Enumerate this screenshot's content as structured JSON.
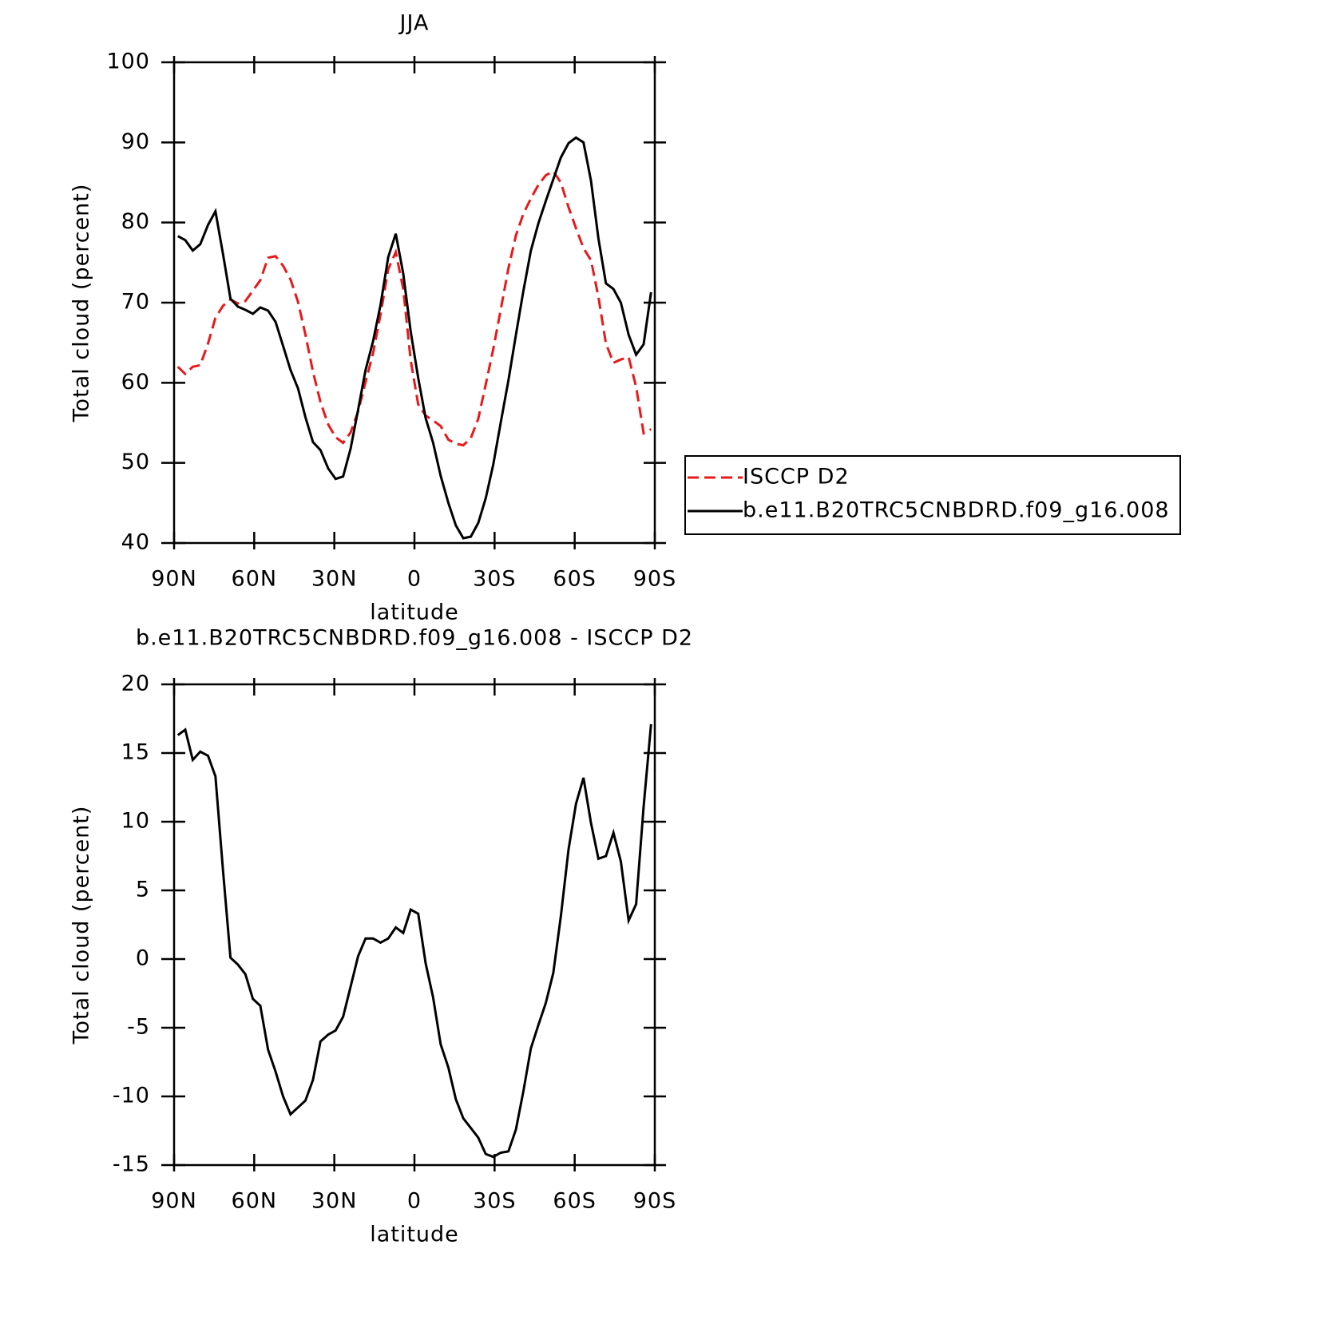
{
  "chart_data": [
    {
      "type": "line",
      "title": "JJA",
      "xlabel": "latitude",
      "ylabel": "Total cloud (percent)",
      "x": [
        88.6,
        85.8,
        83.0,
        80.2,
        77.3,
        74.5,
        71.7,
        68.9,
        66.1,
        63.3,
        60.5,
        57.7,
        54.8,
        52.0,
        49.2,
        46.4,
        43.6,
        40.8,
        38.0,
        35.2,
        32.3,
        29.5,
        26.7,
        23.9,
        21.1,
        18.3,
        15.5,
        12.7,
        9.8,
        7.0,
        4.2,
        1.4,
        -1.4,
        -4.2,
        -7.0,
        -9.8,
        -12.7,
        -15.5,
        -18.3,
        -21.1,
        -23.9,
        -26.7,
        -29.5,
        -32.3,
        -35.2,
        -38.0,
        -40.8,
        -43.6,
        -46.4,
        -49.2,
        -52.0,
        -54.8,
        -57.7,
        -60.5,
        -63.3,
        -66.1,
        -68.9,
        -71.7,
        -74.5,
        -77.3,
        -80.2,
        -83.0,
        -85.8,
        -88.6
      ],
      "series": [
        {
          "name": "ISCCP D2",
          "color": "#e8191b",
          "dashed": true,
          "values": [
            62.0,
            61.1,
            62.0,
            62.2,
            64.9,
            68.1,
            69.6,
            70.4,
            69.9,
            70.2,
            71.5,
            72.8,
            75.6,
            75.8,
            74.6,
            72.9,
            70.1,
            66.0,
            61.4,
            57.6,
            54.8,
            53.2,
            52.5,
            53.8,
            56.4,
            60.1,
            63.7,
            68.5,
            74.2,
            76.3,
            71.7,
            62.8,
            57.3,
            55.9,
            55.3,
            54.6,
            52.9,
            52.4,
            52.2,
            53.1,
            55.5,
            59.8,
            64.2,
            69.1,
            74.3,
            78.4,
            81.1,
            83.0,
            84.7,
            85.9,
            86.4,
            85.0,
            81.9,
            79.3,
            76.8,
            75.3,
            70.7,
            64.9,
            62.5,
            62.9,
            63.2,
            59.5,
            53.7,
            54.2
          ]
        },
        {
          "name": "b.e11.B20TRC5CNBDRD.f09_g16.008",
          "color": "#000000",
          "dashed": false,
          "values": [
            78.3,
            77.8,
            76.5,
            77.3,
            79.7,
            81.4,
            76.1,
            70.5,
            69.5,
            69.1,
            68.6,
            69.4,
            69.0,
            67.6,
            64.6,
            61.6,
            59.3,
            55.7,
            52.6,
            51.6,
            49.3,
            48.0,
            48.3,
            51.8,
            56.6,
            61.6,
            65.2,
            69.7,
            75.7,
            78.6,
            73.6,
            66.4,
            60.6,
            55.6,
            52.5,
            48.4,
            45.0,
            42.2,
            40.6,
            40.8,
            42.5,
            45.6,
            49.8,
            55.0,
            60.3,
            66.0,
            71.5,
            76.5,
            79.9,
            82.7,
            85.4,
            88.1,
            89.9,
            90.6,
            90.0,
            85.2,
            78.0,
            72.4,
            71.7,
            70.0,
            66.0,
            63.5,
            64.8,
            71.3
          ]
        }
      ],
      "xlim": [
        90,
        -90
      ],
      "xticks": [
        {
          "value": 90,
          "label": "90N"
        },
        {
          "value": 60,
          "label": "60N"
        },
        {
          "value": 30,
          "label": "30N"
        },
        0,
        {
          "value": -30,
          "label": "30S"
        },
        {
          "value": -60,
          "label": "60S"
        },
        {
          "value": -90,
          "label": "90S"
        }
      ],
      "ylim": [
        40,
        100
      ],
      "yticks": [
        40,
        50,
        60,
        70,
        80,
        90,
        100
      ],
      "legend": "right"
    },
    {
      "type": "line",
      "title": "b.e11.B20TRC5CNBDRD.f09_g16.008 - ISCCP D2",
      "xlabel": "latitude",
      "ylabel": "Total cloud (percent)",
      "x": [
        88.6,
        85.8,
        83.0,
        80.2,
        77.3,
        74.5,
        71.7,
        68.9,
        66.1,
        63.3,
        60.5,
        57.7,
        54.8,
        52.0,
        49.2,
        46.4,
        43.6,
        40.8,
        38.0,
        35.2,
        32.3,
        29.5,
        26.7,
        23.9,
        21.1,
        18.3,
        15.5,
        12.7,
        9.8,
        7.0,
        4.2,
        1.4,
        -1.4,
        -4.2,
        -7.0,
        -9.8,
        -12.7,
        -15.5,
        -18.3,
        -21.1,
        -23.9,
        -26.7,
        -29.5,
        -32.3,
        -35.2,
        -38.0,
        -40.8,
        -43.6,
        -46.4,
        -49.2,
        -52.0,
        -54.8,
        -57.7,
        -60.5,
        -63.3,
        -66.1,
        -68.9,
        -71.7,
        -74.5,
        -77.3,
        -80.2,
        -83.0,
        -85.8,
        -88.6
      ],
      "color": "#000000",
      "values": [
        16.3,
        16.7,
        14.5,
        15.1,
        14.8,
        13.3,
        6.5,
        0.1,
        -0.4,
        -1.1,
        -2.9,
        -3.4,
        -6.6,
        -8.2,
        -10.0,
        -11.3,
        -10.8,
        -10.3,
        -8.8,
        -6.0,
        -5.5,
        -5.2,
        -4.2,
        -2.0,
        0.2,
        1.5,
        1.5,
        1.2,
        1.5,
        2.3,
        1.9,
        3.6,
        3.3,
        -0.3,
        -2.8,
        -6.2,
        -7.9,
        -10.2,
        -11.6,
        -12.3,
        -13.0,
        -14.2,
        -14.4,
        -14.1,
        -14.0,
        -12.4,
        -9.6,
        -6.5,
        -4.8,
        -3.2,
        -1.0,
        3.1,
        8.0,
        11.3,
        13.2,
        9.9,
        7.3,
        7.5,
        9.2,
        7.1,
        2.8,
        4.0,
        11.1,
        17.1
      ],
      "xlim": [
        90,
        -90
      ],
      "xticks": [
        {
          "value": 90,
          "label": "90N"
        },
        {
          "value": 60,
          "label": "60N"
        },
        {
          "value": 30,
          "label": "30N"
        },
        0,
        {
          "value": -30,
          "label": "30S"
        },
        {
          "value": -60,
          "label": "60S"
        },
        {
          "value": -90,
          "label": "90S"
        }
      ],
      "ylim": [
        -15,
        20
      ],
      "yticks": [
        -15,
        -10,
        -5,
        0,
        5,
        10,
        15,
        20
      ]
    }
  ]
}
